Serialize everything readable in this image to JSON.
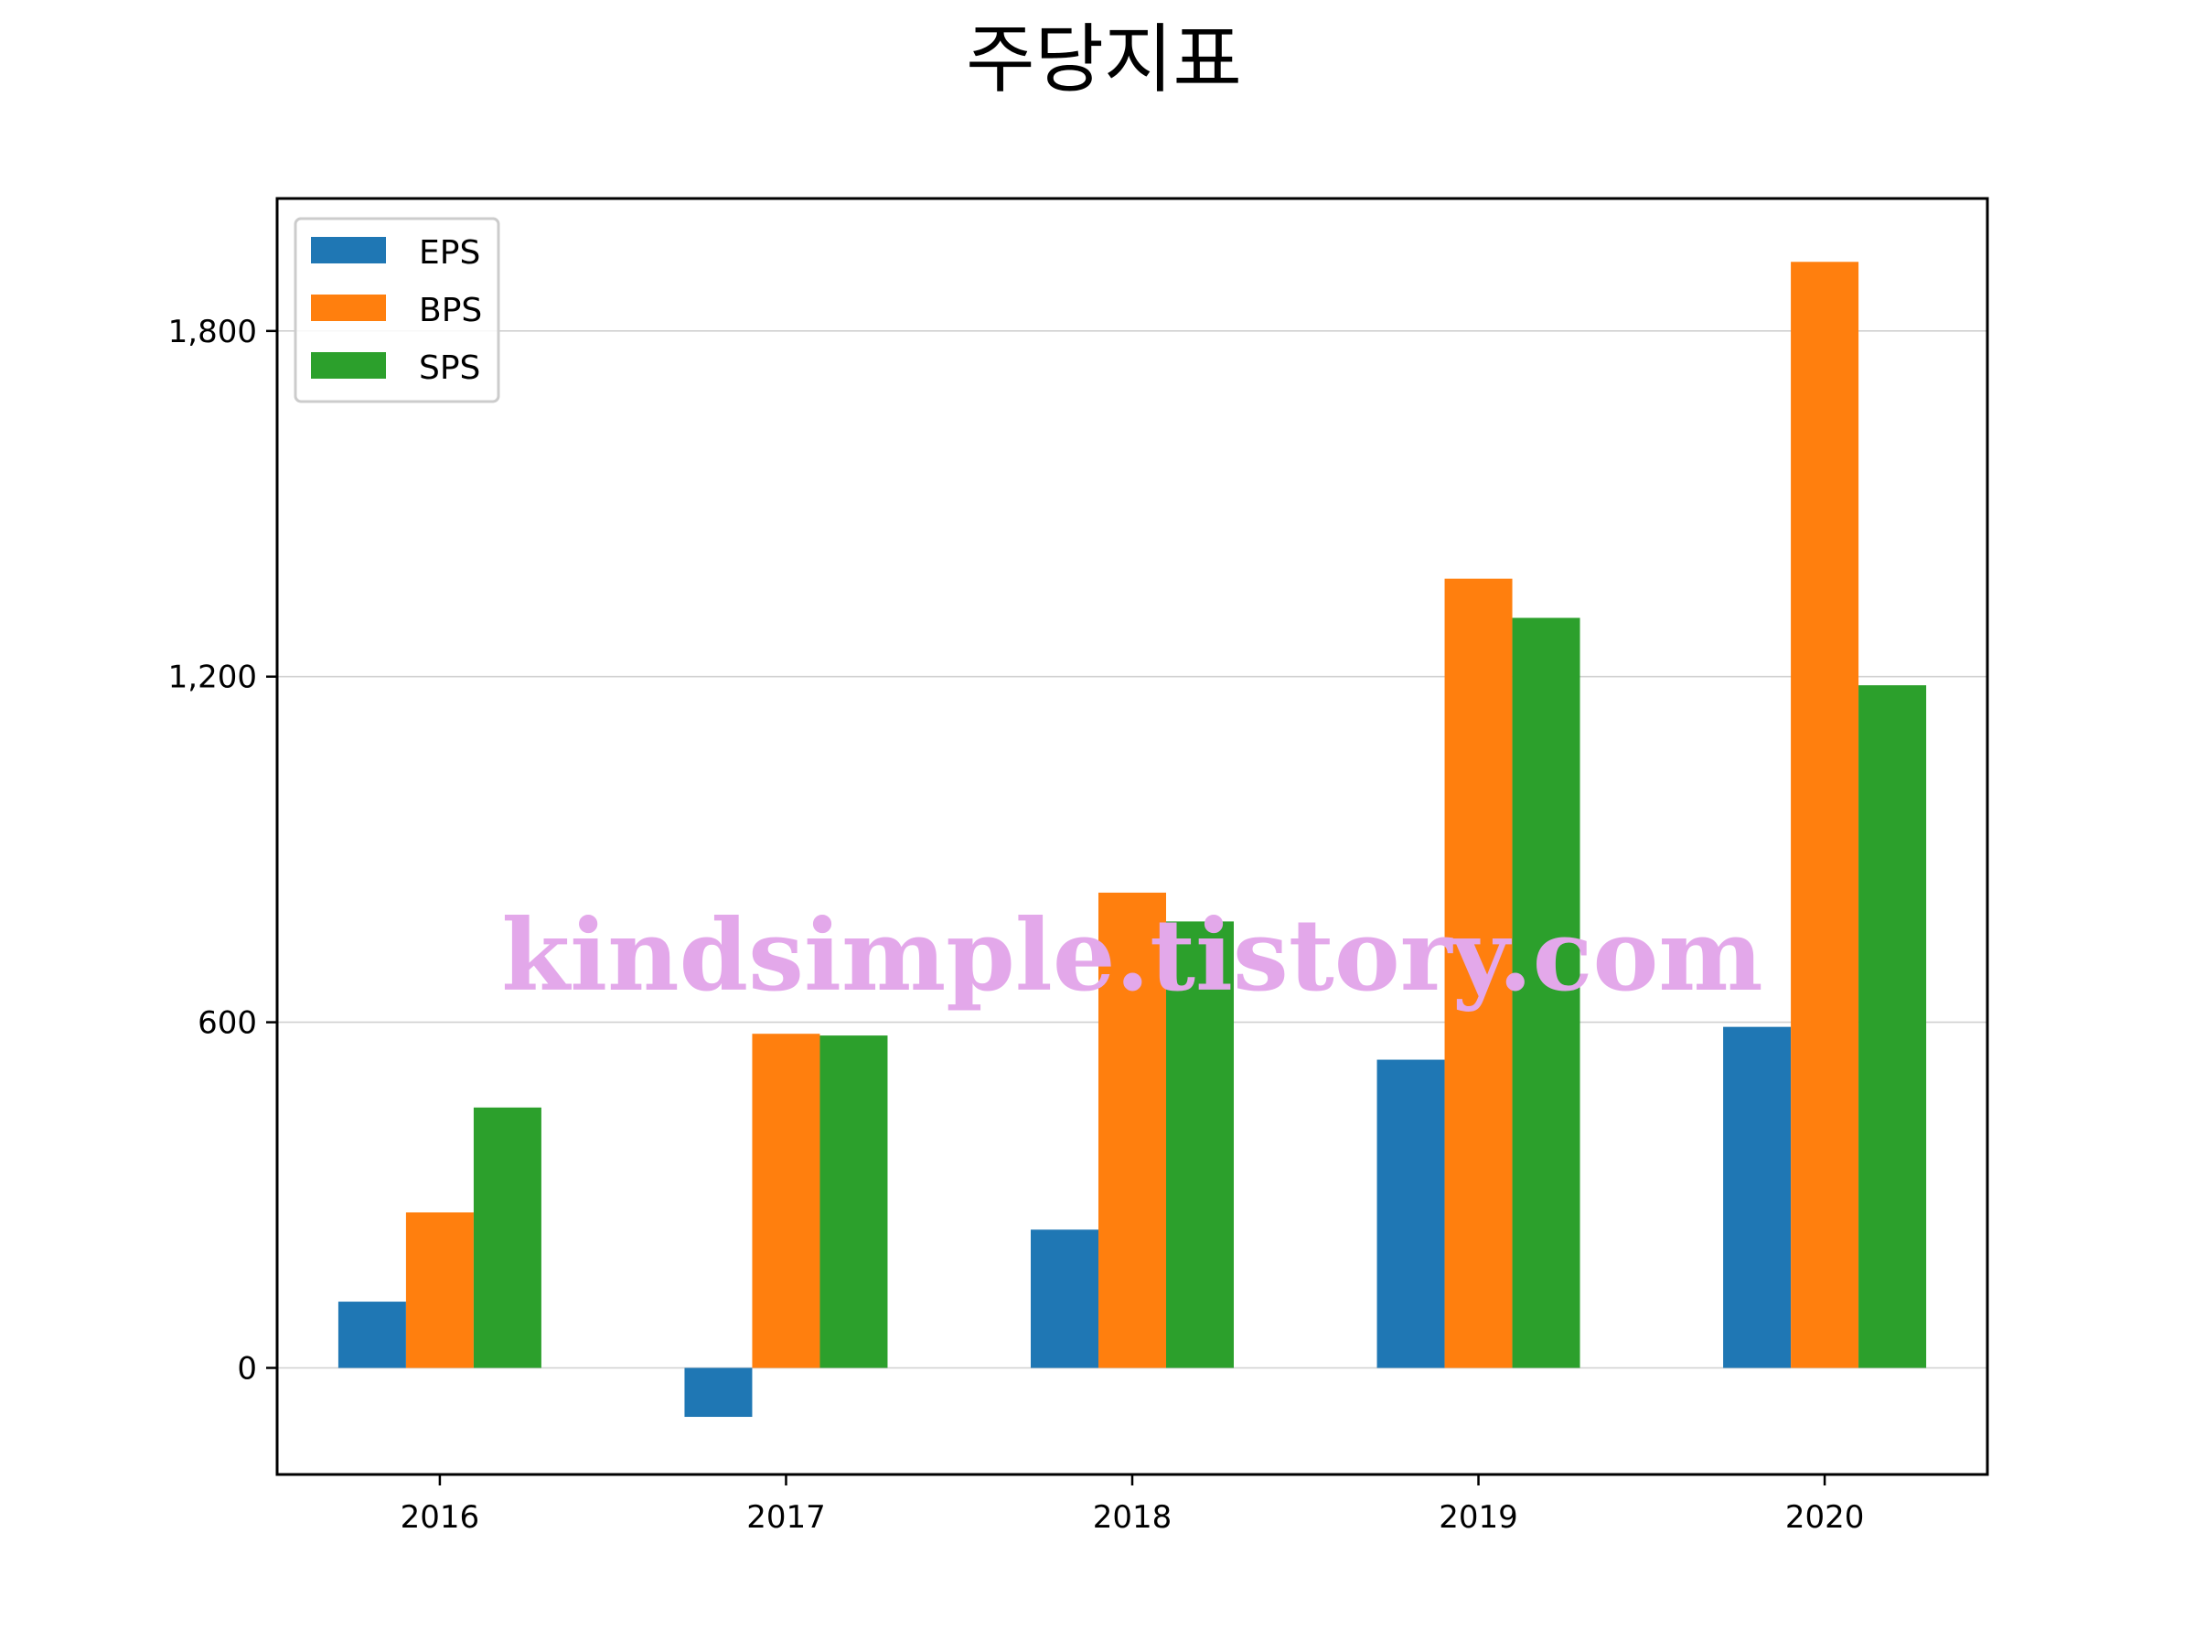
{
  "chart_data": {
    "type": "bar",
    "title": "주당지표",
    "xlabel": "",
    "ylabel": "",
    "categories": [
      "2016",
      "2017",
      "2018",
      "2019",
      "2020"
    ],
    "series": [
      {
        "name": "EPS",
        "color": "#1f77b4",
        "values": [
          115,
          -85,
          240,
          535,
          592
        ]
      },
      {
        "name": "BPS",
        "color": "#ff7f0e",
        "values": [
          270,
          580,
          825,
          1370,
          1920
        ]
      },
      {
        "name": "SPS",
        "color": "#2ca02c",
        "values": [
          452,
          577,
          775,
          1302,
          1185
        ]
      }
    ],
    "ylim": [
      -185,
      2030
    ],
    "yticks": [
      0,
      600,
      1200,
      1800
    ],
    "ytick_labels": [
      "0",
      "600",
      "1,200",
      "1,800"
    ],
    "grid": {
      "y": true,
      "x": false,
      "color": "#d0d0d0"
    },
    "legend_position": "top-left",
    "watermark": "kindsimple.tistory.com"
  }
}
